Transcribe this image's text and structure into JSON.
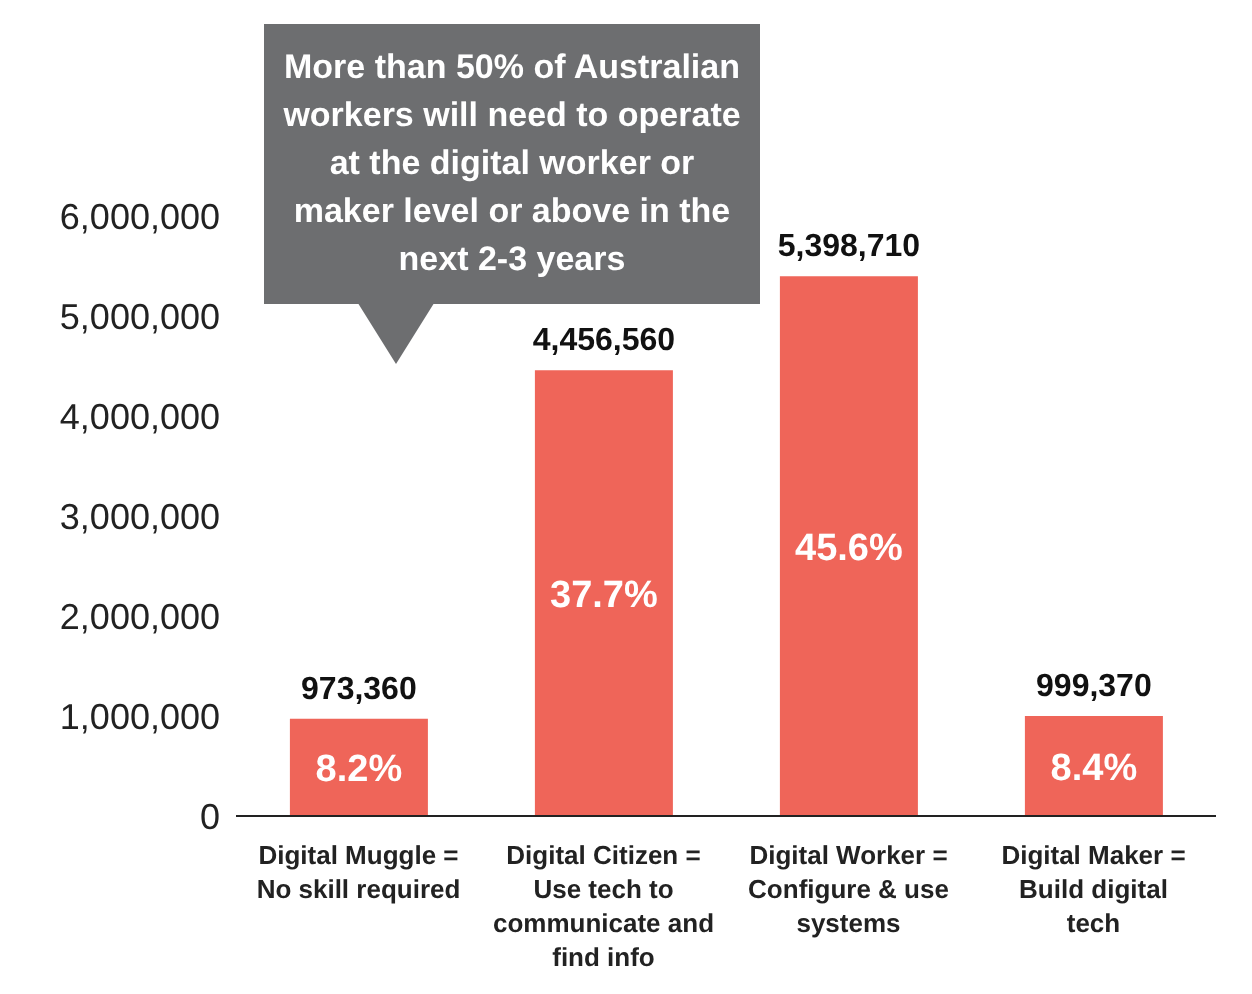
{
  "chart_data": {
    "type": "bar",
    "categories": [
      "Digital Muggle = No skill required",
      "Digital Citizen = Use tech to communicate and find info",
      "Digital Worker = Configure & use systems",
      "Digital Maker = Build digital tech"
    ],
    "values": [
      973360,
      4456560,
      5398710,
      999370
    ],
    "value_labels": [
      "973,360",
      "4,456,560",
      "5,398,710",
      "999,370"
    ],
    "color": "#ef6559",
    "ylim": [
      0,
      6000000
    ],
    "yticks": [
      {
        "value": 0,
        "label": "0"
      },
      {
        "value": 1000000,
        "label": "1,000,000"
      },
      {
        "value": 2000000,
        "label": "2,000,000"
      },
      {
        "value": 3000000,
        "label": "3,000,000"
      },
      {
        "value": 4000000,
        "label": "4,000,000"
      },
      {
        "value": 5000000,
        "label": "5,000,000"
      },
      {
        "value": 6000000,
        "label": "6,000,000"
      }
    ],
    "grid": false,
    "legend": false,
    "annotations": [
      "More than 50% of Australian workers will need to operate at the digital worker or maker level or above in the next 2-3 years",
      "8.2%",
      "37.7%",
      "45.6%",
      "8.4%"
    ]
  }
}
